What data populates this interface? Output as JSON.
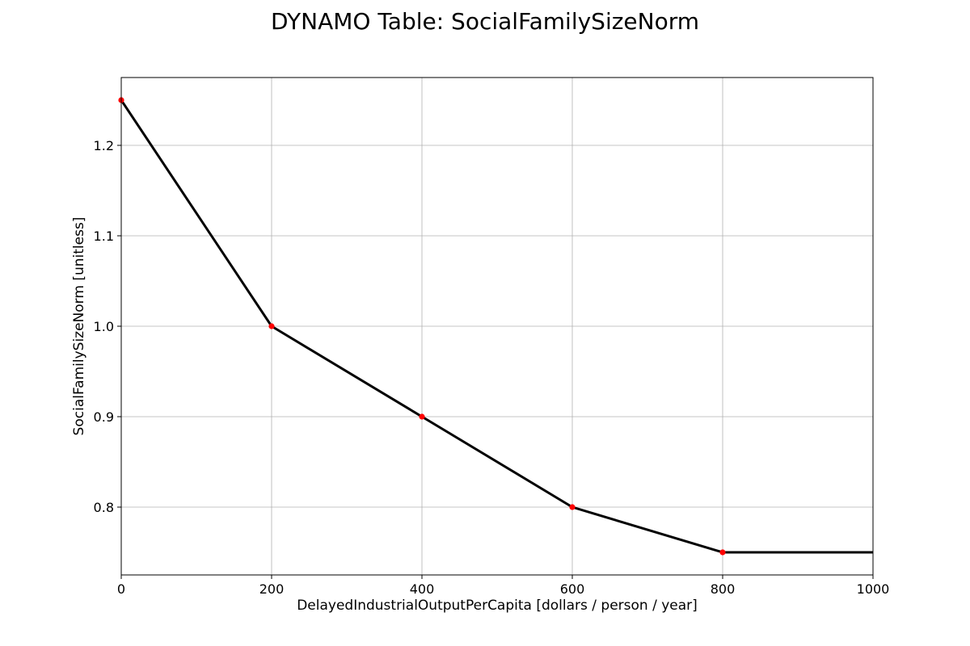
{
  "chart_data": {
    "type": "line",
    "title": "DYNAMO Table: SocialFamilySizeNorm",
    "xlabel": "DelayedIndustrialOutputPerCapita [dollars / person / year]",
    "ylabel": "SocialFamilySizeNorm [unitless]",
    "xlim": [
      0,
      1000
    ],
    "ylim": [
      0.725,
      1.275
    ],
    "x_ticks": [
      0,
      200,
      400,
      600,
      800,
      1000
    ],
    "y_ticks": [
      0.8,
      0.9,
      1.0,
      1.1,
      1.2
    ],
    "x_tick_labels": [
      "0",
      "200",
      "400",
      "600",
      "800",
      "1000"
    ],
    "y_tick_labels": [
      "0.8",
      "0.9",
      "1.0",
      "1.1",
      "1.2"
    ],
    "grid": true,
    "series": [
      {
        "x": [
          0,
          200,
          400,
          600,
          800,
          1000
        ],
        "y": [
          1.25,
          1.0,
          0.9,
          0.8,
          0.75,
          0.75
        ],
        "color": "#000000"
      }
    ],
    "table_points": {
      "x": [
        0,
        200,
        400,
        600,
        800
      ],
      "y": [
        1.25,
        1.0,
        0.9,
        0.8,
        0.75
      ],
      "color": "#ff0000"
    }
  }
}
